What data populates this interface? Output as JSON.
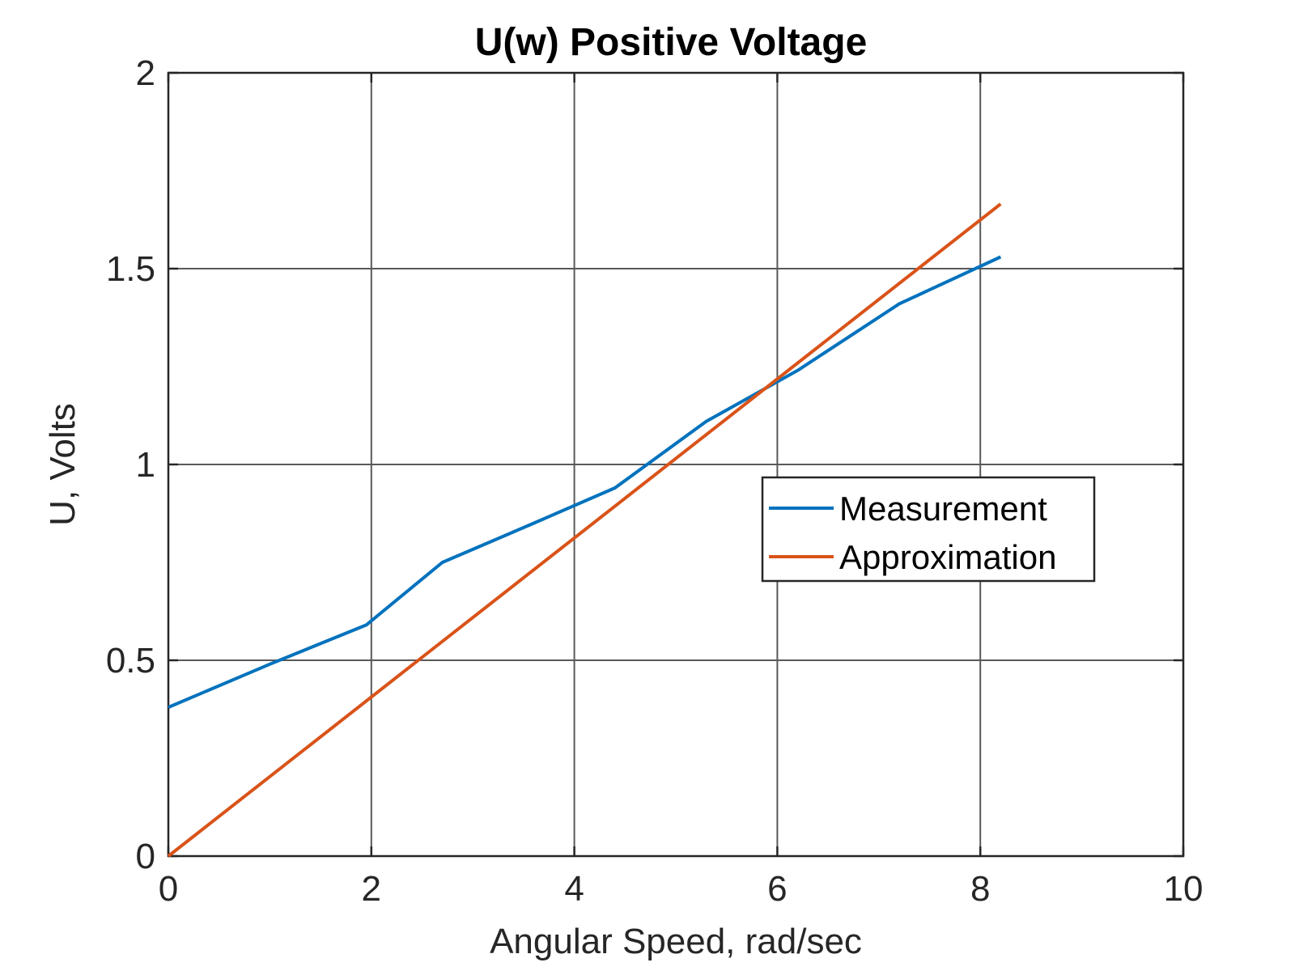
{
  "chart_data": {
    "type": "line",
    "title": "U(w) Positive Voltage",
    "xlabel": "Angular Speed, rad/sec",
    "ylabel": "U, Volts",
    "xlim": [
      0,
      10
    ],
    "ylim": [
      0,
      2
    ],
    "xticks": [
      0,
      2,
      4,
      6,
      8,
      10
    ],
    "yticks": [
      0,
      0.5,
      1,
      1.5,
      2
    ],
    "xtick_labels": [
      "0",
      "2",
      "4",
      "6",
      "8",
      "10"
    ],
    "ytick_labels": [
      "0",
      "0.5",
      "1",
      "1.5",
      "2"
    ],
    "grid": true,
    "legend_position": "right-middle",
    "series": [
      {
        "name": "Measurement",
        "color": "#0072BD",
        "x": [
          0,
          1.0,
          1.95,
          2.7,
          3.6,
          4.4,
          5.3,
          6.2,
          7.2,
          8.2
        ],
        "y": [
          0.38,
          0.49,
          0.59,
          0.75,
          0.85,
          0.94,
          1.11,
          1.24,
          1.41,
          1.53
        ]
      },
      {
        "name": "Approximation",
        "color": "#D95319",
        "x": [
          0,
          8.2
        ],
        "y": [
          0,
          1.665
        ]
      }
    ]
  }
}
